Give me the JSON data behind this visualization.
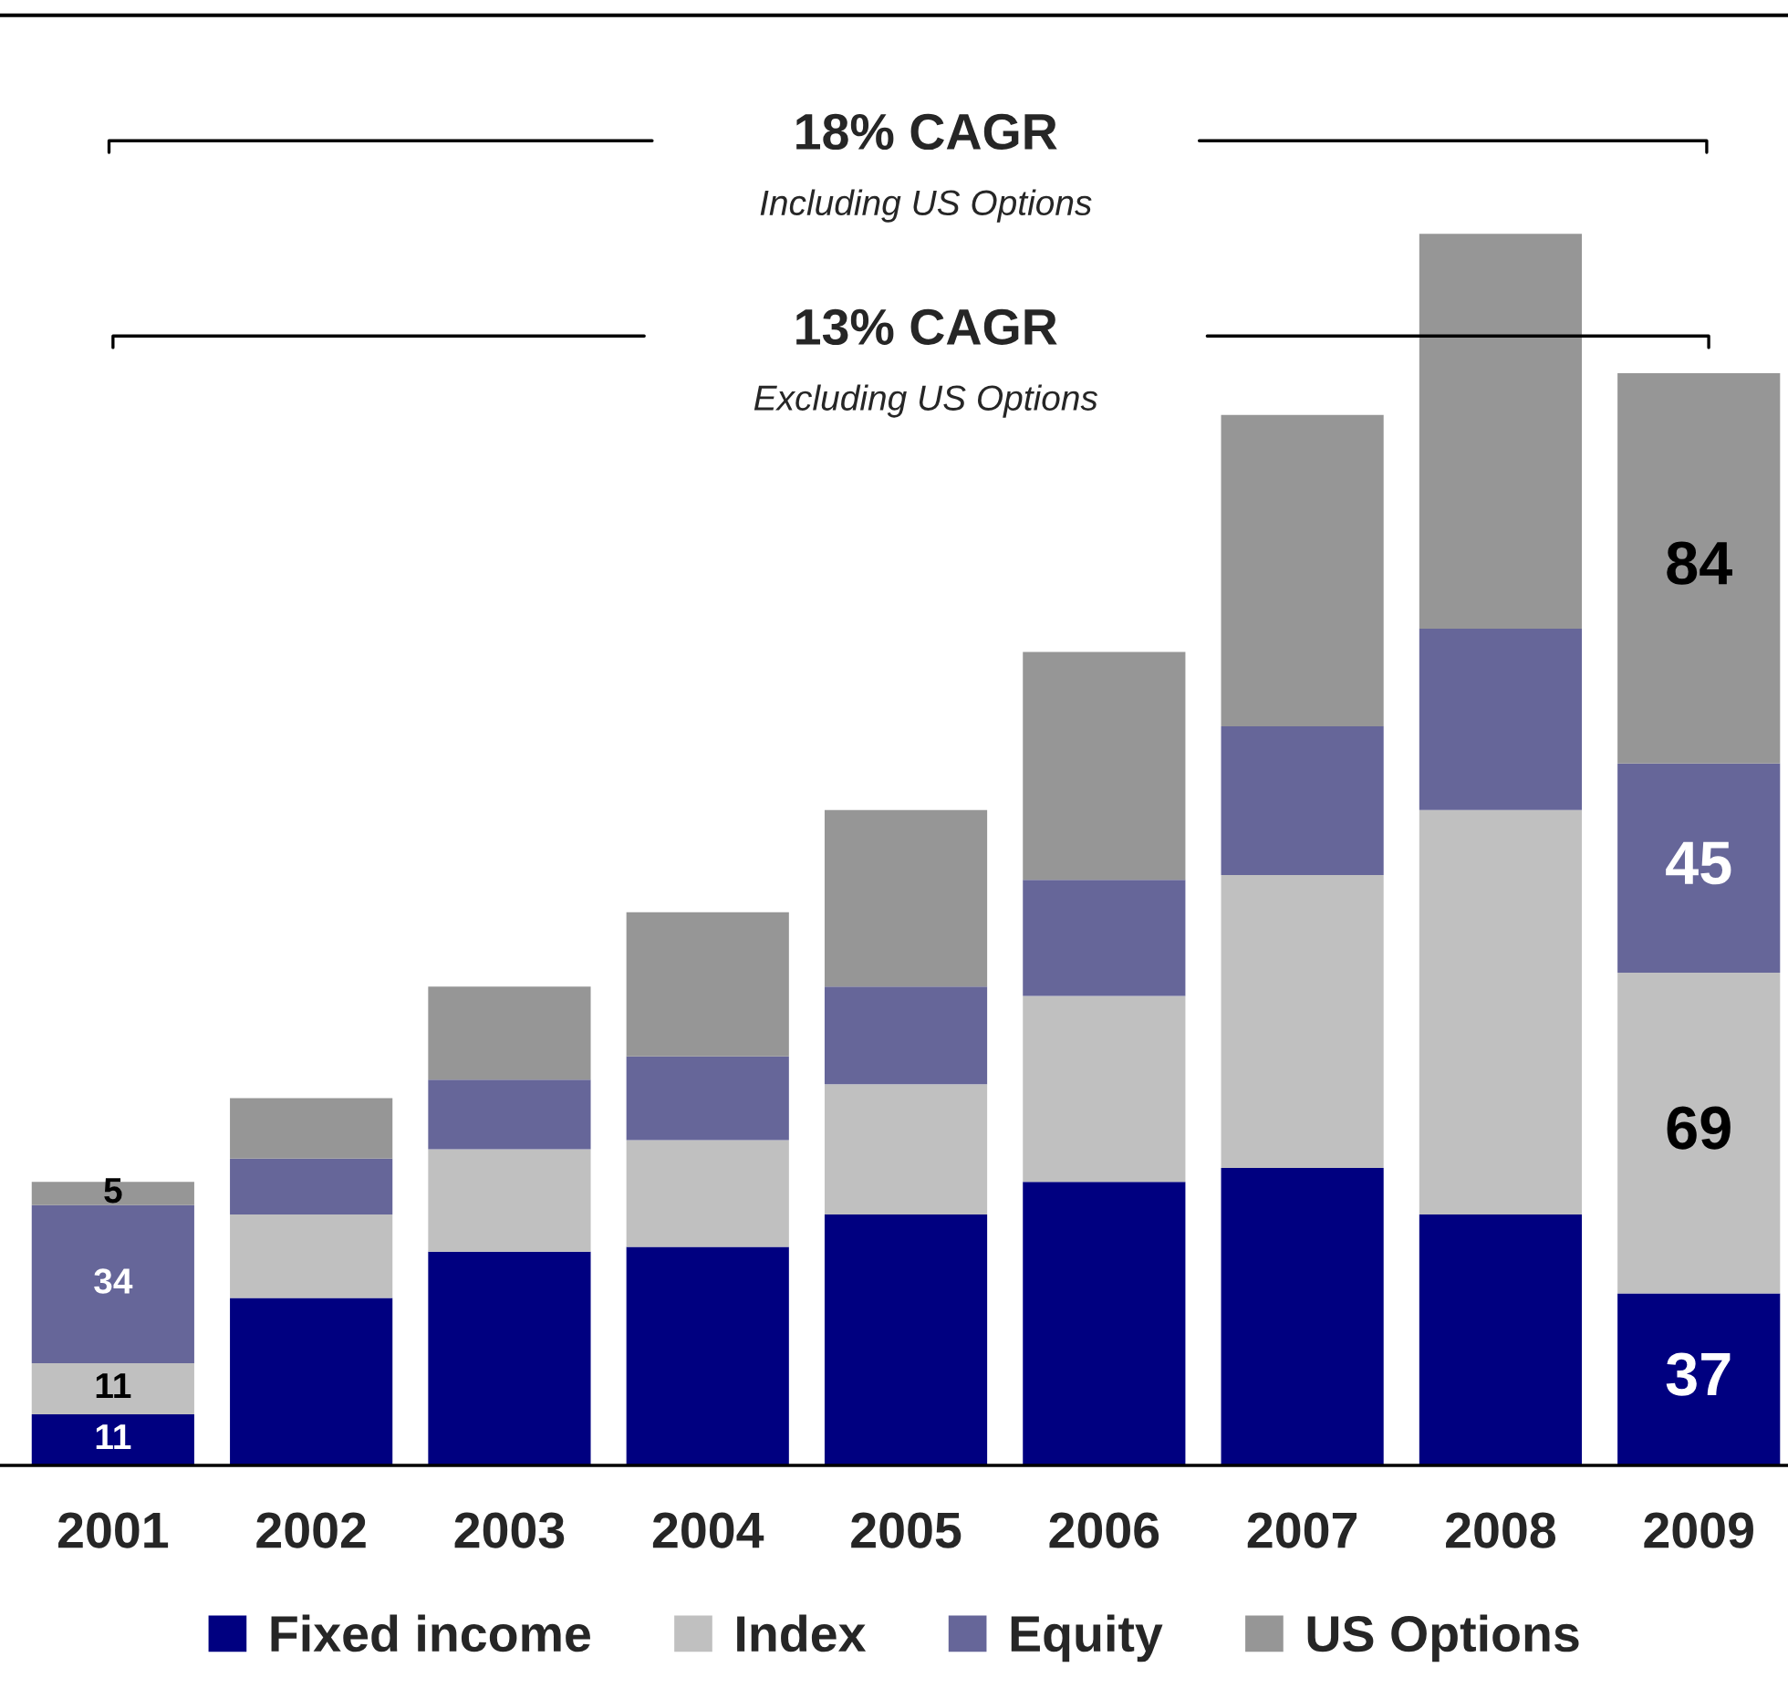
{
  "chart_data": {
    "type": "bar",
    "stacked": true,
    "categories": [
      "2001",
      "2002",
      "2003",
      "2004",
      "2005",
      "2006",
      "2007",
      "2008",
      "2009"
    ],
    "series": [
      {
        "name": "Fixed income",
        "color": "#000080",
        "values": [
          11,
          36,
          46,
          47,
          54,
          61,
          64,
          54,
          37
        ],
        "value_labels": [
          "11",
          null,
          null,
          null,
          null,
          null,
          null,
          null,
          "37"
        ]
      },
      {
        "name": "Index",
        "color": "#c0c0c0",
        "values": [
          11,
          18,
          22,
          23,
          28,
          40,
          63,
          87,
          69
        ],
        "value_labels": [
          "11",
          null,
          null,
          null,
          null,
          null,
          null,
          null,
          "69"
        ]
      },
      {
        "name": "Equity",
        "color": "#666699",
        "values": [
          34,
          12,
          15,
          18,
          21,
          25,
          32,
          39,
          45
        ],
        "value_labels": [
          "34",
          null,
          null,
          null,
          null,
          null,
          null,
          null,
          "45"
        ]
      },
      {
        "name": "US Options",
        "color": "#969696",
        "values": [
          5,
          13,
          20,
          31,
          38,
          49,
          67,
          85,
          84
        ],
        "value_labels": [
          "5",
          null,
          null,
          null,
          null,
          null,
          null,
          null,
          "84"
        ]
      }
    ],
    "ylim": [
      0,
      312
    ],
    "annotations": [
      "18% CAGR",
      "Including US Options",
      "13% CAGR",
      "Excluding US Options"
    ],
    "legend": "bottom",
    "grid": false
  }
}
